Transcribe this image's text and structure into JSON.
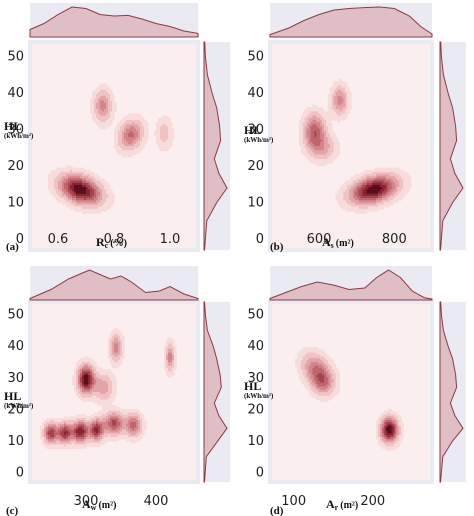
{
  "colors": {
    "panel_bg": "#eaeaf2",
    "plot_bg": "#fbeeee",
    "marginal_fill": "#dcb4b9",
    "marginal_line": "#8a3a45",
    "kde_levels": [
      "#f7dcdc",
      "#efc3c4",
      "#e3a4a7",
      "#d4858a",
      "#c0656c",
      "#a6434d",
      "#872434",
      "#5a0e1a"
    ]
  },
  "chart_data": [
    {
      "type": "kde-joint",
      "panel_label": "(a)",
      "xlabel": "R",
      "xlabel_sub": "c",
      "xlabel_unit": "(%)",
      "ylabel": "HL",
      "ylabel_unit": "(kWh/m²)",
      "xlim": [
        0.5,
        1.1
      ],
      "ylim": [
        -3,
        54
      ],
      "xticks": [
        "0.6",
        "0.8",
        "1.0"
      ],
      "xtick_values": [
        0.6,
        0.8,
        1.0
      ],
      "yticks": [
        "0",
        "10",
        "20",
        "30",
        "40",
        "50"
      ],
      "ytick_values": [
        0,
        10,
        20,
        30,
        40,
        50
      ],
      "clusters": [
        {
          "x": 0.68,
          "y": 13.5,
          "sx": 0.05,
          "sy": 2.7,
          "w": 1.0,
          "rho": -0.35
        },
        {
          "x": 0.76,
          "y": 36.5,
          "sx": 0.022,
          "sy": 3.0,
          "w": 0.45,
          "rho": 0
        },
        {
          "x": 0.86,
          "y": 28.5,
          "sx": 0.03,
          "sy": 2.8,
          "w": 0.55,
          "rho": 0.2
        },
        {
          "x": 0.98,
          "y": 29,
          "sx": 0.02,
          "sy": 3.0,
          "w": 0.22,
          "rho": 0
        }
      ],
      "marginal_x": [
        [
          0.5,
          0.25
        ],
        [
          0.55,
          0.45
        ],
        [
          0.6,
          0.75
        ],
        [
          0.65,
          1.0
        ],
        [
          0.7,
          0.95
        ],
        [
          0.75,
          0.75
        ],
        [
          0.8,
          0.7
        ],
        [
          0.85,
          0.72
        ],
        [
          0.9,
          0.6
        ],
        [
          0.95,
          0.45
        ],
        [
          1.0,
          0.35
        ],
        [
          1.05,
          0.2
        ],
        [
          1.1,
          0.12
        ]
      ],
      "marginal_y": [
        [
          -3,
          0.02
        ],
        [
          5,
          0.12
        ],
        [
          10,
          0.55
        ],
        [
          14,
          1.0
        ],
        [
          18,
          0.65
        ],
        [
          22,
          0.45
        ],
        [
          27,
          0.72
        ],
        [
          31,
          0.68
        ],
        [
          36,
          0.55
        ],
        [
          40,
          0.35
        ],
        [
          45,
          0.15
        ],
        [
          50,
          0.06
        ],
        [
          54,
          0.03
        ]
      ]
    },
    {
      "type": "kde-joint",
      "panel_label": "(b)",
      "xlabel": "A",
      "xlabel_sub": "s",
      "xlabel_unit": "(m²)",
      "ylabel": "HL",
      "ylabel_unit": "(kWh/m²)",
      "xlim": [
        470,
        900
      ],
      "ylim": [
        -3,
        54
      ],
      "xticks": [
        "600",
        "800"
      ],
      "xtick_values": [
        600,
        800
      ],
      "yticks": [
        "0",
        "10",
        "20",
        "30",
        "40",
        "50"
      ],
      "ytick_values": [
        0,
        10,
        20,
        30,
        40,
        50
      ],
      "clusters": [
        {
          "x": 745,
          "y": 13.5,
          "sx": 42,
          "sy": 2.6,
          "w": 1.0,
          "rho": 0.35
        },
        {
          "x": 588,
          "y": 29.5,
          "sx": 20,
          "sy": 3.3,
          "w": 0.6,
          "rho": 0
        },
        {
          "x": 655,
          "y": 38,
          "sx": 15,
          "sy": 2.8,
          "w": 0.45,
          "rho": 0
        },
        {
          "x": 610,
          "y": 25,
          "sx": 25,
          "sy": 2.5,
          "w": 0.3,
          "rho": 0
        }
      ],
      "marginal_x": [
        [
          470,
          0.08
        ],
        [
          520,
          0.3
        ],
        [
          560,
          0.55
        ],
        [
          600,
          0.75
        ],
        [
          640,
          0.9
        ],
        [
          680,
          0.95
        ],
        [
          720,
          0.98
        ],
        [
          760,
          1.0
        ],
        [
          800,
          0.95
        ],
        [
          840,
          0.7
        ],
        [
          870,
          0.35
        ],
        [
          900,
          0.1
        ]
      ],
      "marginal_y": [
        [
          -3,
          0.02
        ],
        [
          5,
          0.12
        ],
        [
          10,
          0.55
        ],
        [
          14,
          1.0
        ],
        [
          18,
          0.65
        ],
        [
          22,
          0.45
        ],
        [
          27,
          0.72
        ],
        [
          31,
          0.68
        ],
        [
          36,
          0.55
        ],
        [
          40,
          0.35
        ],
        [
          45,
          0.15
        ],
        [
          50,
          0.06
        ],
        [
          54,
          0.03
        ]
      ]
    },
    {
      "type": "kde-joint",
      "panel_label": "(c)",
      "xlabel": "A",
      "xlabel_sub": "w",
      "xlabel_unit": "(m²)",
      "ylabel": "HL",
      "ylabel_unit": "(kWh/m²)",
      "xlim": [
        220,
        460
      ],
      "ylim": [
        -3,
        54
      ],
      "xticks": [
        "300",
        "400"
      ],
      "xtick_values": [
        300,
        400
      ],
      "yticks": [
        "0",
        "10",
        "20",
        "30",
        "40",
        "50"
      ],
      "ytick_values": [
        0,
        10,
        20,
        30,
        40,
        50
      ],
      "clusters": [
        {
          "x": 250,
          "y": 12.5,
          "sx": 7,
          "sy": 2.2,
          "w": 0.7,
          "rho": 0
        },
        {
          "x": 270,
          "y": 12.5,
          "sx": 7,
          "sy": 2.2,
          "w": 0.75,
          "rho": 0
        },
        {
          "x": 292,
          "y": 13,
          "sx": 8,
          "sy": 2.3,
          "w": 0.85,
          "rho": 0
        },
        {
          "x": 315,
          "y": 13.5,
          "sx": 7,
          "sy": 2.3,
          "w": 0.75,
          "rho": 0
        },
        {
          "x": 340,
          "y": 15.5,
          "sx": 10,
          "sy": 2.4,
          "w": 0.65,
          "rho": 0
        },
        {
          "x": 368,
          "y": 15,
          "sx": 8,
          "sy": 2.5,
          "w": 0.55,
          "rho": 0
        },
        {
          "x": 300,
          "y": 29.5,
          "sx": 8,
          "sy": 3.0,
          "w": 0.95,
          "rho": 0
        },
        {
          "x": 325,
          "y": 27,
          "sx": 10,
          "sy": 3.0,
          "w": 0.35,
          "rho": 0
        },
        {
          "x": 343,
          "y": 39.5,
          "sx": 6,
          "sy": 3.0,
          "w": 0.45,
          "rho": 0
        },
        {
          "x": 420,
          "y": 36.5,
          "sx": 4.5,
          "sy": 3.0,
          "w": 0.45,
          "rho": 0
        }
      ],
      "marginal_x": [
        [
          220,
          0.05
        ],
        [
          250,
          0.35
        ],
        [
          275,
          0.7
        ],
        [
          295,
          0.9
        ],
        [
          305,
          1.0
        ],
        [
          320,
          0.85
        ],
        [
          335,
          0.7
        ],
        [
          350,
          0.8
        ],
        [
          365,
          0.6
        ],
        [
          385,
          0.25
        ],
        [
          405,
          0.3
        ],
        [
          420,
          0.45
        ],
        [
          440,
          0.2
        ],
        [
          460,
          0.05
        ]
      ],
      "marginal_y": [
        [
          -3,
          0.02
        ],
        [
          5,
          0.1
        ],
        [
          10,
          0.6
        ],
        [
          14,
          1.0
        ],
        [
          18,
          0.65
        ],
        [
          22,
          0.45
        ],
        [
          27,
          0.75
        ],
        [
          31,
          0.7
        ],
        [
          36,
          0.55
        ],
        [
          40,
          0.4
        ],
        [
          45,
          0.15
        ],
        [
          50,
          0.06
        ],
        [
          54,
          0.02
        ]
      ]
    },
    {
      "type": "kde-joint",
      "panel_label": "(d)",
      "xlabel": "A",
      "xlabel_sub": "r",
      "xlabel_unit": "(m²)",
      "ylabel": "HL",
      "ylabel_unit": "(kWh/m²)",
      "xlim": [
        70,
        275
      ],
      "ylim": [
        -3,
        54
      ],
      "xticks": [
        "100",
        "200"
      ],
      "xtick_values": [
        100,
        200
      ],
      "yticks": [
        "0",
        "10",
        "20",
        "30",
        "40",
        "50"
      ],
      "ytick_values": [
        0,
        10,
        20,
        30,
        40,
        50
      ],
      "clusters": [
        {
          "x": 130,
          "y": 32,
          "sx": 13,
          "sy": 3.8,
          "w": 0.55,
          "rho": -0.35
        },
        {
          "x": 137,
          "y": 28,
          "sx": 9,
          "sy": 2.5,
          "w": 0.3,
          "rho": 0
        },
        {
          "x": 221,
          "y": 13.5,
          "sx": 7.5,
          "sy": 2.7,
          "w": 1.0,
          "rho": 0
        }
      ],
      "marginal_x": [
        [
          70,
          0.05
        ],
        [
          90,
          0.25
        ],
        [
          110,
          0.45
        ],
        [
          130,
          0.6
        ],
        [
          150,
          0.5
        ],
        [
          170,
          0.35
        ],
        [
          190,
          0.4
        ],
        [
          205,
          0.75
        ],
        [
          220,
          1.0
        ],
        [
          235,
          0.75
        ],
        [
          250,
          0.3
        ],
        [
          265,
          0.08
        ],
        [
          275,
          0.03
        ]
      ],
      "marginal_y": [
        [
          -3,
          0.02
        ],
        [
          5,
          0.12
        ],
        [
          10,
          0.55
        ],
        [
          14,
          1.0
        ],
        [
          18,
          0.65
        ],
        [
          22,
          0.45
        ],
        [
          27,
          0.72
        ],
        [
          31,
          0.68
        ],
        [
          36,
          0.55
        ],
        [
          40,
          0.35
        ],
        [
          45,
          0.15
        ],
        [
          50,
          0.06
        ],
        [
          54,
          0.03
        ]
      ]
    }
  ]
}
